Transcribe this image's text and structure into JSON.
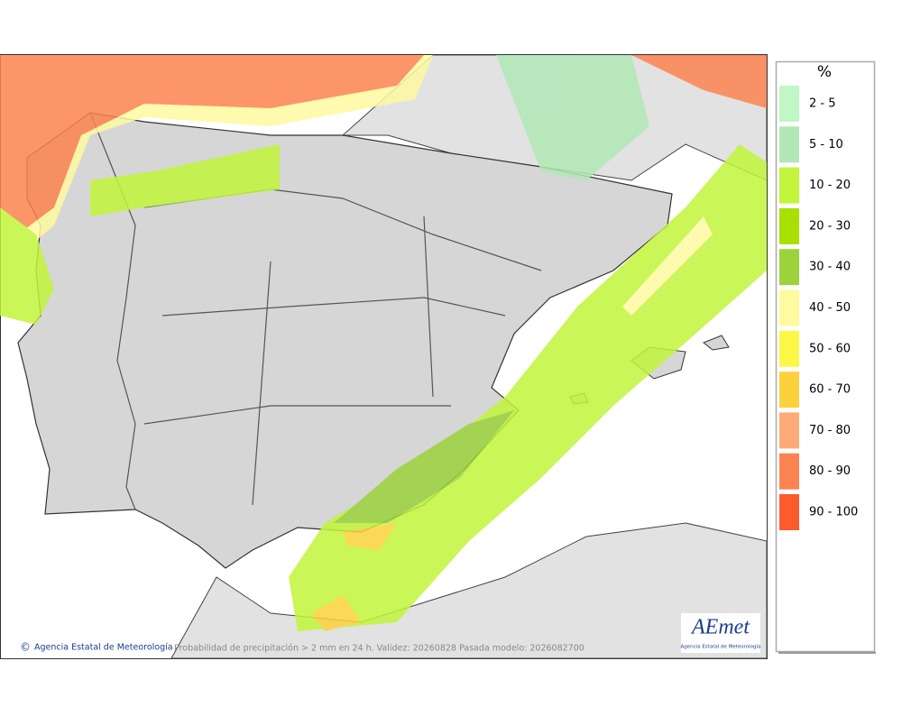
{
  "map": {
    "footer": {
      "credit": "Agencia Estatal de Meteorología",
      "caption": "Probabilidad de precipitación > 2 mm en 24 h. Validez: 20260828 Pasada modelo: 2026082700"
    },
    "logo": {
      "name": "AEmet",
      "subtitle": "Agencia Estatal de Meteorología"
    }
  },
  "legend": {
    "title": "%",
    "items": [
      {
        "label": "2 - 5",
        "color": "#c0f7c4"
      },
      {
        "label": "5 - 10",
        "color": "#b2e8b6"
      },
      {
        "label": "10 - 20",
        "color": "#c2f53c"
      },
      {
        "label": "20 - 30",
        "color": "#a8e000"
      },
      {
        "label": "30 - 40",
        "color": "#9cd23c"
      },
      {
        "label": "40 - 50",
        "color": "#fefaa0"
      },
      {
        "label": "50 - 60",
        "color": "#fcf646"
      },
      {
        "label": "60 - 70",
        "color": "#fcd23c"
      },
      {
        "label": "70 - 80",
        "color": "#fcaa78"
      },
      {
        "label": "80 - 90",
        "color": "#fc8450"
      },
      {
        "label": "90 - 100",
        "color": "#fc5c2c"
      }
    ]
  }
}
